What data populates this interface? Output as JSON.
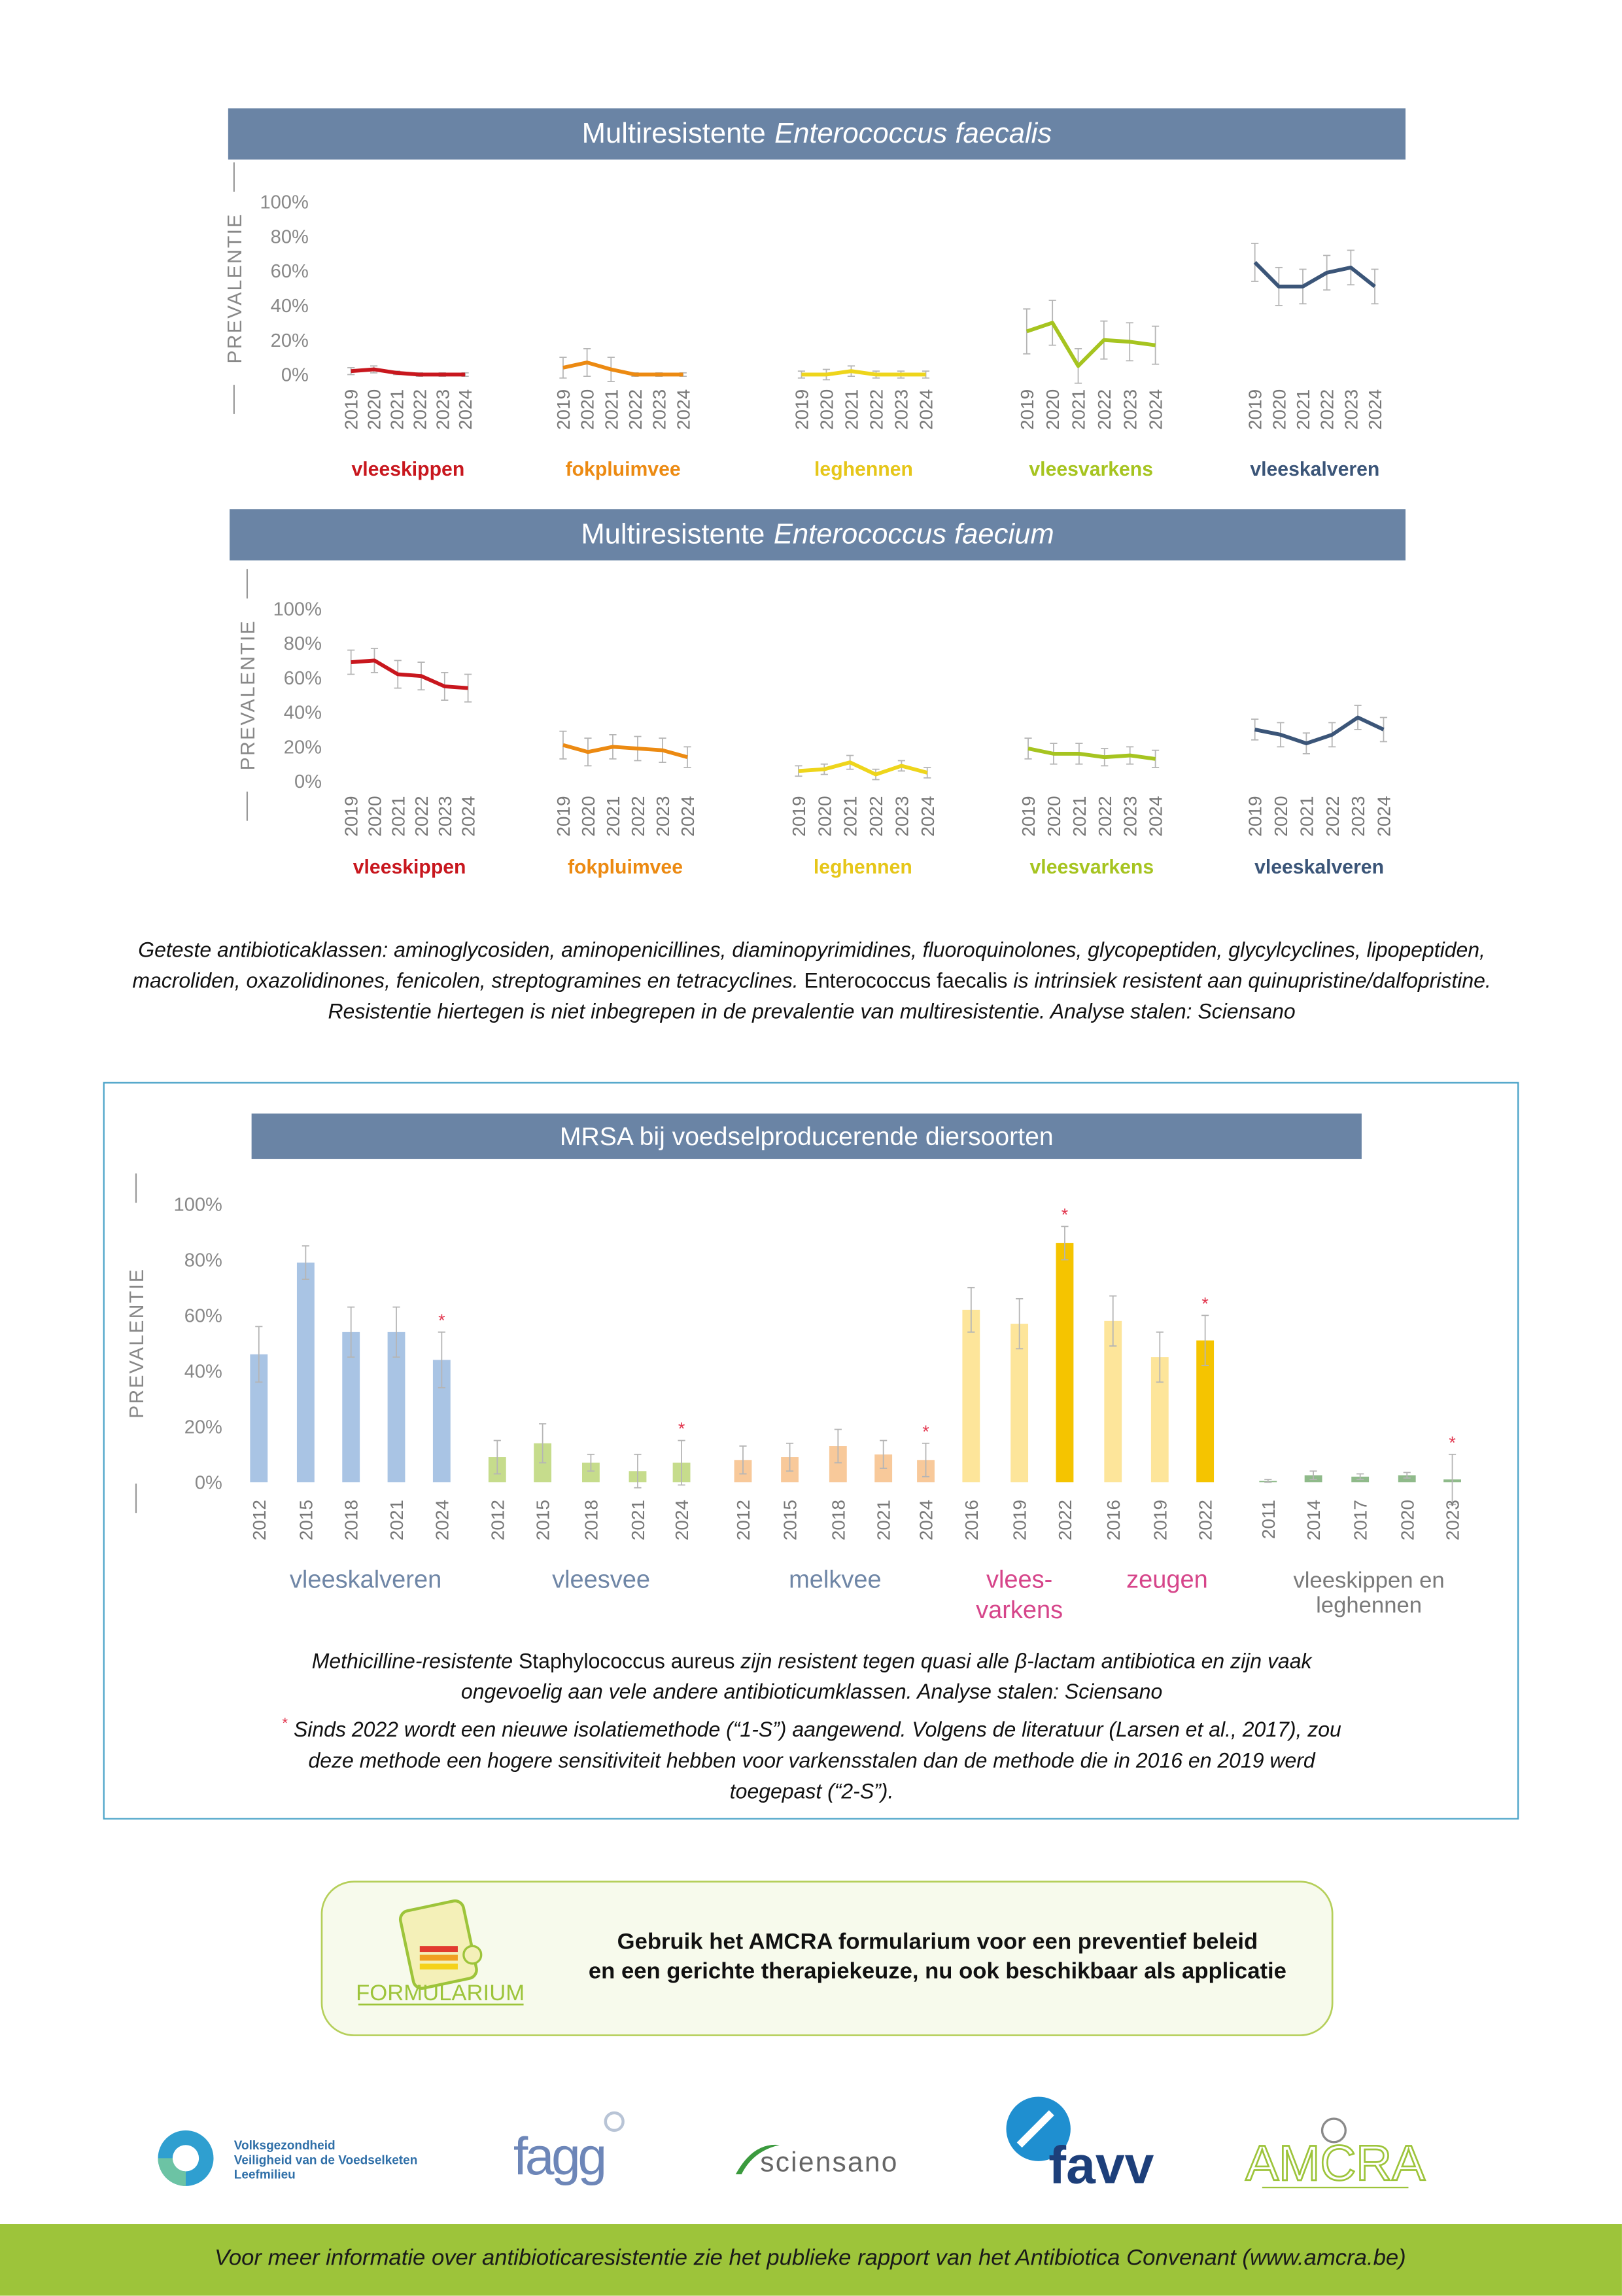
{
  "chart_data": [
    {
      "type": "line",
      "title": "Multiresistente",
      "title_italic": "Enterococcus faecalis",
      "ylabel": "PREVALENTIE",
      "ylim": [
        0,
        100
      ],
      "yticks": [
        {
          "value": 0,
          "label": "0%"
        },
        {
          "value": 20,
          "label": "20%"
        },
        {
          "value": 40,
          "label": "40%"
        },
        {
          "value": 60,
          "label": "60%"
        },
        {
          "value": 80,
          "label": "80%"
        },
        {
          "value": 100,
          "label": "100%"
        }
      ],
      "series": [
        {
          "name": "vleeskippen",
          "color": "#c8171e",
          "categories": [
            "2019",
            "2020",
            "2021",
            "2022",
            "2023",
            "2024"
          ],
          "values": [
            2,
            3,
            1,
            0,
            0,
            0
          ],
          "errors": [
            2,
            2,
            1,
            1,
            1,
            1
          ]
        },
        {
          "name": "fokpluimvee",
          "color": "#ec8a12",
          "categories": [
            "2019",
            "2020",
            "2021",
            "2022",
            "2023",
            "2024"
          ],
          "values": [
            4,
            7,
            3,
            0,
            0,
            0
          ],
          "errors": [
            6,
            8,
            7,
            1,
            1,
            1
          ]
        },
        {
          "name": "leghennen",
          "color": "#eed51c",
          "categories": [
            "2019",
            "2020",
            "2021",
            "2022",
            "2023",
            "2024"
          ],
          "values": [
            0,
            0,
            2,
            0,
            0,
            0
          ],
          "errors": [
            2,
            3,
            3,
            2,
            2,
            2
          ]
        },
        {
          "name": "vleesvarkens",
          "color": "#a6c420",
          "categories": [
            "2019",
            "2020",
            "2021",
            "2022",
            "2023",
            "2024"
          ],
          "values": [
            25,
            30,
            5,
            20,
            19,
            17
          ],
          "errors": [
            13,
            13,
            10,
            11,
            11,
            11
          ]
        },
        {
          "name": "vleeskalveren",
          "color": "#3b5578",
          "categories": [
            "2019",
            "2020",
            "2021",
            "2022",
            "2023",
            "2024"
          ],
          "values": [
            65,
            51,
            51,
            59,
            62,
            51
          ],
          "errors": [
            11,
            11,
            10,
            10,
            10,
            10
          ]
        }
      ]
    },
    {
      "type": "line",
      "title": "Multiresistente",
      "title_italic": "Enterococcus faecium",
      "ylabel": "PREVALENTIE",
      "ylim": [
        0,
        100
      ],
      "yticks": [
        {
          "value": 0,
          "label": "0%"
        },
        {
          "value": 20,
          "label": "20%"
        },
        {
          "value": 40,
          "label": "40%"
        },
        {
          "value": 60,
          "label": "60%"
        },
        {
          "value": 80,
          "label": "80%"
        },
        {
          "value": 100,
          "label": "100%"
        }
      ],
      "series": [
        {
          "name": "vleeskippen",
          "color": "#c8171e",
          "categories": [
            "2019",
            "2020",
            "2021",
            "2022",
            "2023",
            "2024"
          ],
          "values": [
            69,
            70,
            62,
            61,
            55,
            54
          ],
          "errors": [
            7,
            7,
            8,
            8,
            8,
            8
          ]
        },
        {
          "name": "fokpluimvee",
          "color": "#ec8a12",
          "categories": [
            "2019",
            "2020",
            "2021",
            "2022",
            "2023",
            "2024"
          ],
          "values": [
            21,
            17,
            20,
            19,
            18,
            14
          ],
          "errors": [
            8,
            8,
            7,
            7,
            7,
            6
          ]
        },
        {
          "name": "leghennen",
          "color": "#eed51c",
          "categories": [
            "2019",
            "2020",
            "2021",
            "2022",
            "2023",
            "2024"
          ],
          "values": [
            6,
            7,
            11,
            4,
            9,
            5
          ],
          "errors": [
            3,
            3,
            4,
            3,
            3,
            3
          ]
        },
        {
          "name": "vleesvarkens",
          "color": "#a6c420",
          "categories": [
            "2019",
            "2020",
            "2021",
            "2022",
            "2023",
            "2024"
          ],
          "values": [
            19,
            16,
            16,
            14,
            15,
            13
          ],
          "errors": [
            6,
            6,
            6,
            5,
            5,
            5
          ]
        },
        {
          "name": "vleeskalveren",
          "color": "#3b5578",
          "categories": [
            "2019",
            "2020",
            "2021",
            "2022",
            "2023",
            "2024"
          ],
          "values": [
            30,
            27,
            22,
            27,
            37,
            30
          ],
          "errors": [
            6,
            7,
            6,
            7,
            7,
            7
          ]
        }
      ]
    },
    {
      "type": "bar",
      "title": "MRSA bij voedselproducerende diersoorten",
      "ylabel": "PREVALENTIE",
      "ylim": [
        0,
        100
      ],
      "flag_symbol": "*",
      "flag_color": "#e2374f",
      "yticks": [
        {
          "value": 0,
          "label": "0%"
        },
        {
          "value": 20,
          "label": "20%"
        },
        {
          "value": 40,
          "label": "40%"
        },
        {
          "value": 60,
          "label": "60%"
        },
        {
          "value": 80,
          "label": "80%"
        },
        {
          "value": 100,
          "label": "100%"
        }
      ],
      "series": [
        {
          "name": [
            "vleeskalveren"
          ],
          "label_color": "#6f86a6",
          "color": "#a9c4e4",
          "categories": [
            "2012",
            "2015",
            "2018",
            "2021",
            "2024"
          ],
          "values": [
            46,
            79,
            54,
            54,
            44
          ],
          "errors": [
            10,
            6,
            9,
            9,
            10
          ],
          "flags": [
            false,
            false,
            false,
            false,
            true
          ]
        },
        {
          "name": [
            "vleesvee"
          ],
          "label_color": "#6f86a6",
          "color": "#c6dc8c",
          "categories": [
            "2012",
            "2015",
            "2018",
            "2021",
            "2024"
          ],
          "values": [
            9,
            14,
            7,
            4,
            7
          ],
          "errors": [
            6,
            7,
            3,
            6,
            8
          ],
          "flags": [
            false,
            false,
            false,
            false,
            true
          ]
        },
        {
          "name": [
            "melkvee"
          ],
          "label_color": "#6f86a6",
          "color": "#f8c99a",
          "categories": [
            "2012",
            "2015",
            "2018",
            "2021",
            "2024"
          ],
          "values": [
            8,
            9,
            13,
            10,
            8
          ],
          "errors": [
            5,
            5,
            6,
            5,
            6
          ],
          "flags": [
            false,
            false,
            false,
            false,
            true
          ]
        },
        {
          "name": [
            "vlees-",
            "varkens"
          ],
          "label_color": "#d6458a",
          "color": "#fde59a",
          "colors": [
            "#fde59a",
            "#fde59a",
            "#f5c400"
          ],
          "categories": [
            "2016",
            "2019",
            "2022"
          ],
          "values": [
            62,
            57,
            86
          ],
          "errors": [
            8,
            9,
            6
          ],
          "flags": [
            false,
            false,
            true
          ]
        },
        {
          "name": [
            "zeugen"
          ],
          "label_color": "#d6458a",
          "color": "#fde59a",
          "colors": [
            "#fde59a",
            "#fde59a",
            "#f5c400"
          ],
          "categories": [
            "2016",
            "2019",
            "2022"
          ],
          "values": [
            58,
            45,
            51
          ],
          "errors": [
            9,
            9,
            9
          ],
          "flags": [
            false,
            false,
            true
          ]
        },
        {
          "name": [
            "vleeskippen en",
            "leghennen"
          ],
          "label_color": "#7a7a7a",
          "color": "#8fba8a",
          "categories": [
            "2011",
            "2014",
            "2017",
            "2020",
            "2023"
          ],
          "values": [
            0.5,
            2.5,
            2,
            2.5,
            1
          ],
          "errors": [
            0.5,
            1.5,
            1,
            1,
            9
          ],
          "flags": [
            false,
            false,
            false,
            false,
            true
          ]
        }
      ]
    }
  ],
  "notes": [
    {
      "text": "Geteste antibioticaklassen: aminoglycosiden, aminopenicillines, diaminopyrimidines, fluoroquinolones, glycopeptiden, glycylcyclines, lipopeptiden, macroliden, oxazolidinones, fenicolen, streptogramines en tetracyclines. ",
      "italic": true
    },
    {
      "text": "Enterococcus faecalis",
      "italic": false
    },
    {
      "text": " is intrinsiek resistent aan quinupristine/dalfopristine. Resistentie hiertegen is niet inbegrepen in de prevalentie van multiresistentie. Analyse stalen: Sciensano",
      "italic": true
    }
  ],
  "mrsa_notes": [
    [
      {
        "text": "Methicilline-resistente ",
        "italic": true
      },
      {
        "text": "Staphylococcus aureus",
        "italic": false
      },
      {
        "text": " zijn resistent tegen quasi alle β-lactam antibiotica en zijn vaak ongevoelig aan vele andere antibioticumklassen. Analyse stalen: Sciensano",
        "italic": true
      }
    ],
    [
      {
        "text": "*",
        "italic": false,
        "sup": true
      },
      {
        "text": " Sinds 2022 wordt een nieuwe isolatiemethode (“1-S”) aangewend. Volgens de literatuur (Larsen et al., 2017), zou deze methode een hogere sensitiviteit hebben voor varkensstalen dan de methode die in 2016 en 2019 werd toegepast (“2-S”).",
        "italic": true
      }
    ]
  ],
  "banner": {
    "icon_label": "FORMULARIUM",
    "lines": [
      "Gebruik het AMCRA formularium voor een preventief beleid",
      "en een gerichte therapiekeuze, nu ook beschikbaar als applicatie"
    ]
  },
  "logos": {
    "fod": [
      "Volksgezondheid",
      "Veiligheid van de Voedselketen",
      "Leefmilieu"
    ],
    "fagg": "fagg",
    "sciensano": "sciensano",
    "favv": "favv",
    "amcra": "AMCRA"
  },
  "footer": "Voor meer informatie over antibioticaresistentie zie het publieke rapport van het Antibiotica Convenant (www.amcra.be)"
}
